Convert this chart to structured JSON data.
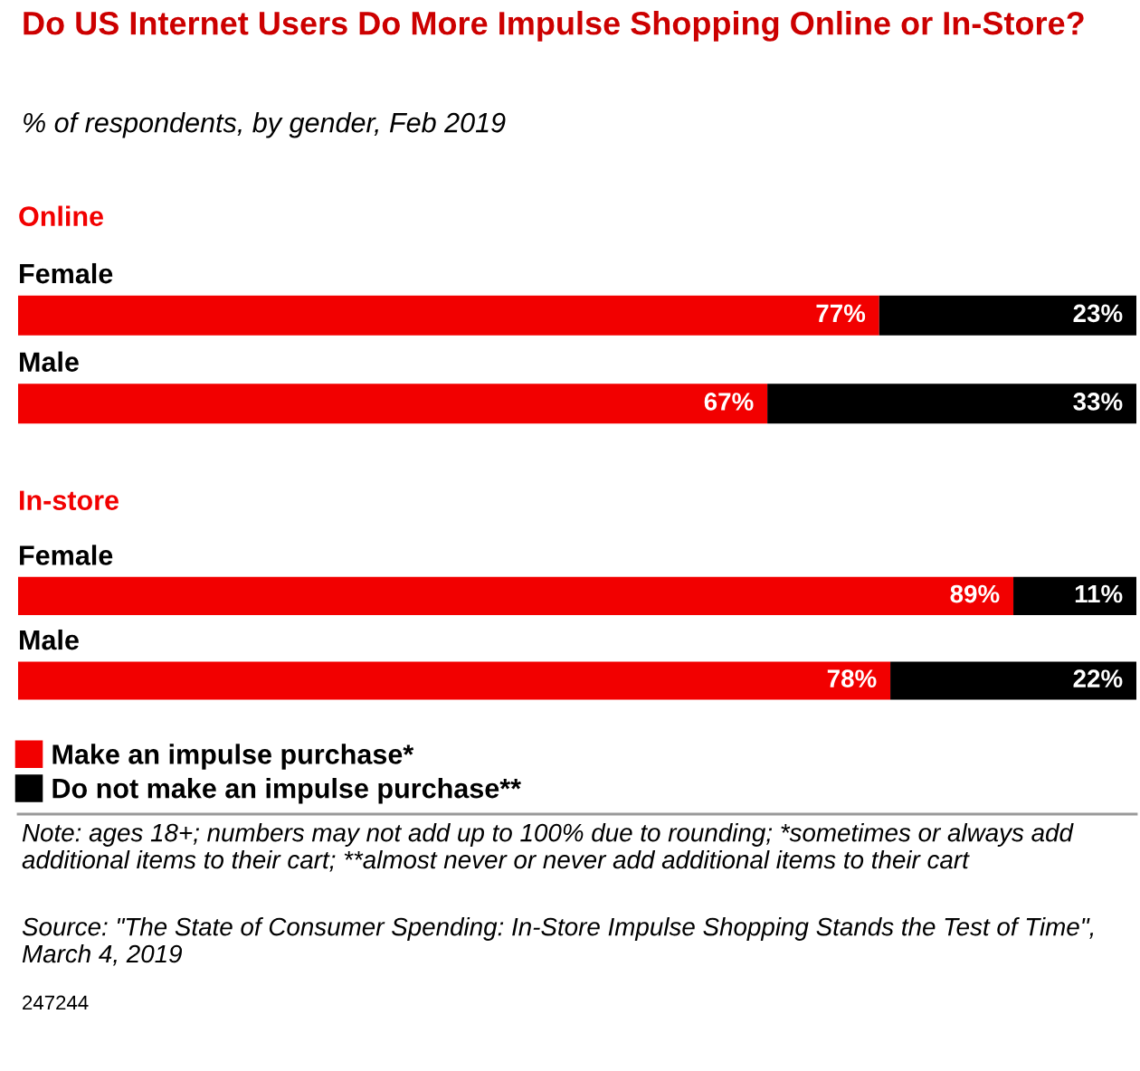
{
  "chart_data": [
    {
      "type": "bar",
      "orientation": "horizontal",
      "stacked": true,
      "title": "Do US Internet Users Do More Impulse Shopping Online or In-Store?",
      "subtitle": "% of respondents, by gender, Feb 2019",
      "ylabel": "Online",
      "categories": [
        "Female",
        "Male"
      ],
      "legend": false,
      "series": [
        {
          "color": "#f20000",
          "values": [
            77,
            67
          ],
          "value_labels": [
            "77%",
            "67%"
          ]
        },
        {
          "color": "#000000",
          "values": [
            23,
            33
          ],
          "value_labels": [
            "23%",
            "33%"
          ]
        }
      ]
    },
    {
      "type": "bar",
      "orientation": "horizontal",
      "stacked": true,
      "ylabel": "In-store",
      "categories": [
        "Female",
        "Male"
      ],
      "legend": "bottom",
      "series": [
        {
          "name": "Make an impulse purchase*",
          "color": "#f20000",
          "values": [
            89,
            78
          ],
          "value_labels": [
            "89%",
            "78%"
          ]
        },
        {
          "name": "Do not make an impulse purchase**",
          "color": "#000000",
          "values": [
            11,
            22
          ],
          "value_labels": [
            "11%",
            "22%"
          ]
        }
      ],
      "annotations": [
        "Note: ages 18+; numbers may not add up to 100% due to rounding; *sometimes or always add additional items to their cart; **almost never or never add additional items to their cart",
        "Source: \"The State of Consumer Spending: In-Store Impulse Shopping Stands the Test of Time\", March 4, 2019",
        "247244"
      ]
    }
  ]
}
